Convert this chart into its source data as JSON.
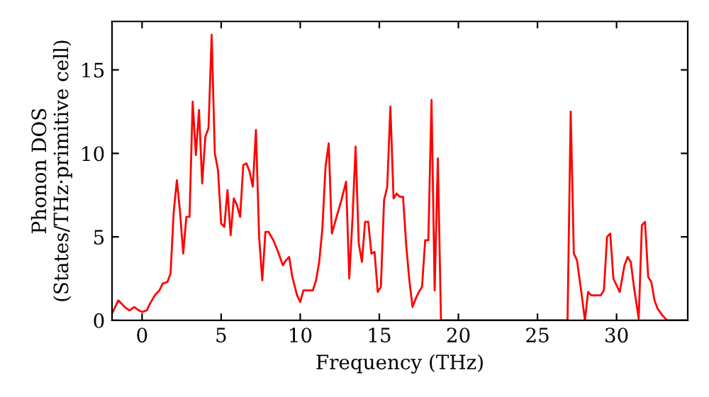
{
  "chart_data": {
    "type": "line",
    "xlabel": "Frequency (THz)",
    "ylabel": "Phonon DOS\n(States/THz·primitive cell)",
    "xlim": [
      -1.9,
      34.5
    ],
    "ylim": [
      0,
      17.9
    ],
    "xticks": [
      0,
      5,
      10,
      15,
      20,
      25,
      30
    ],
    "yticks": [
      0,
      5,
      10,
      15
    ],
    "grid": false,
    "marker": "none",
    "line_style": "solid",
    "series": [
      {
        "color": "#ff0000",
        "x": [
          -1.9,
          -1.5,
          -1.1,
          -0.8,
          -0.5,
          -0.2,
          0,
          0.3,
          0.5,
          0.8,
          1.1,
          1.3,
          1.6,
          1.8,
          2.0,
          2.2,
          2.4,
          2.6,
          2.8,
          3.0,
          3.2,
          3.4,
          3.6,
          3.8,
          4.0,
          4.2,
          4.4,
          4.6,
          4.8,
          5.0,
          5.2,
          5.4,
          5.6,
          5.8,
          6.0,
          6.2,
          6.4,
          6.6,
          6.8,
          7.0,
          7.2,
          7.4,
          7.6,
          7.8,
          8.0,
          8.3,
          8.6,
          8.9,
          9.1,
          9.3,
          9.5,
          9.8,
          10.0,
          10.2,
          10.5,
          10.8,
          11.0,
          11.2,
          11.4,
          11.6,
          11.8,
          12.0,
          12.3,
          12.6,
          12.9,
          13.1,
          13.3,
          13.5,
          13.7,
          13.9,
          14.1,
          14.3,
          14.5,
          14.7,
          14.9,
          15.1,
          15.3,
          15.5,
          15.7,
          15.9,
          16.1,
          16.3,
          16.5,
          16.7,
          16.9,
          17.1,
          17.3,
          17.5,
          17.7,
          17.9,
          18.1,
          18.3,
          18.5,
          18.7,
          18.9,
          26.9,
          27.1,
          27.3,
          27.5,
          27.8,
          28.0,
          28.2,
          28.4,
          28.8,
          29.0,
          29.2,
          29.4,
          29.6,
          29.8,
          30.2,
          30.5,
          30.7,
          30.9,
          31.1,
          31.4,
          31.6,
          31.8,
          32.0,
          32.2,
          32.4,
          32.6,
          32.9,
          33.2,
          34.4
        ],
        "values": [
          0.4,
          1.2,
          0.8,
          0.6,
          0.8,
          0.6,
          0.5,
          0.6,
          1.0,
          1.5,
          1.8,
          2.2,
          2.3,
          2.8,
          6.5,
          8.4,
          6.5,
          4.0,
          6.2,
          6.2,
          13.1,
          9.9,
          12.6,
          8.2,
          11.0,
          11.5,
          17.1,
          10.0,
          9.0,
          5.8,
          5.6,
          7.8,
          5.1,
          7.3,
          6.9,
          6.2,
          9.3,
          9.4,
          8.9,
          8.0,
          11.4,
          5.0,
          2.4,
          5.3,
          5.3,
          4.8,
          4.1,
          3.3,
          3.6,
          3.8,
          2.6,
          1.5,
          1.1,
          1.8,
          1.8,
          1.8,
          2.4,
          3.5,
          5.5,
          9.2,
          10.6,
          5.2,
          6.2,
          7.2,
          8.3,
          2.5,
          6.0,
          10.4,
          4.6,
          3.5,
          5.9,
          5.9,
          4.0,
          4.1,
          1.7,
          2.0,
          7.2,
          8.0,
          12.8,
          7.3,
          7.6,
          7.4,
          7.4,
          4.5,
          2.4,
          0.8,
          1.3,
          1.7,
          2.0,
          4.8,
          4.8,
          13.2,
          1.8,
          9.7,
          0,
          0,
          12.5,
          4.0,
          3.6,
          1.5,
          0,
          1.7,
          1.5,
          1.5,
          1.5,
          1.8,
          5.0,
          5.2,
          2.5,
          1.7,
          3.3,
          3.8,
          3.5,
          2.0,
          0.1,
          5.7,
          5.9,
          2.6,
          2.3,
          1.2,
          0.7,
          0.3,
          0,
          0
        ]
      }
    ]
  }
}
